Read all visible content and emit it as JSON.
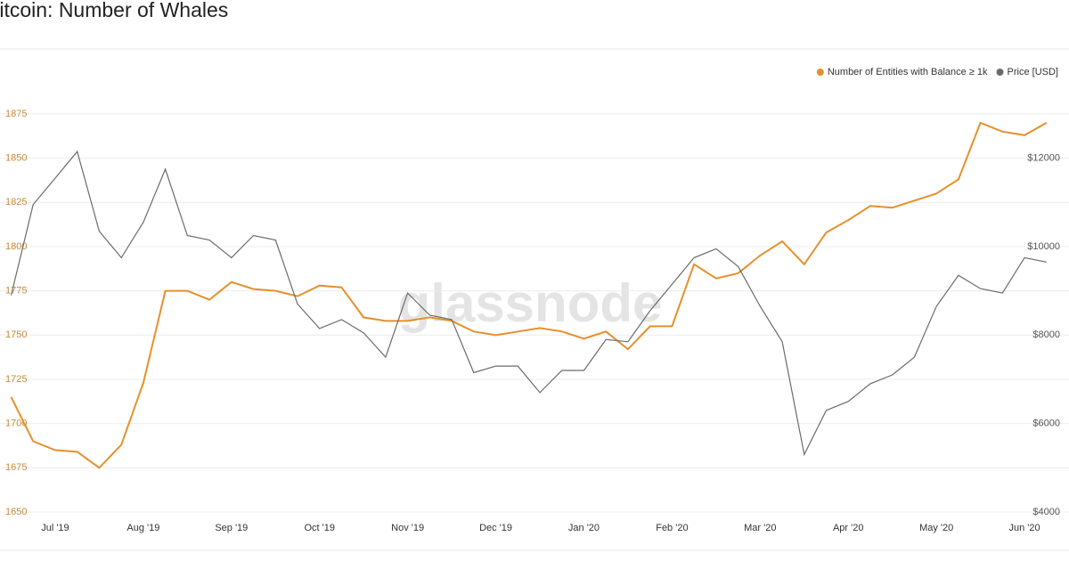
{
  "chart_data": {
    "type": "line",
    "title": "Bitcoin: Number of Whales",
    "watermark": "glassnode",
    "categories": [
      null,
      null,
      "Jul '19",
      null,
      null,
      null,
      "Aug '19",
      null,
      null,
      null,
      "Sep '19",
      null,
      null,
      null,
      "Oct '19",
      null,
      null,
      null,
      "Nov '19",
      null,
      null,
      null,
      "Dec '19",
      null,
      null,
      null,
      "Jan '20",
      null,
      null,
      null,
      "Feb '20",
      null,
      null,
      null,
      "Mar '20",
      null,
      null,
      null,
      "Apr '20",
      null,
      null,
      null,
      "May '20",
      null,
      null,
      null,
      "Jun '20",
      null
    ],
    "series": [
      {
        "name": "Number of Entities with Balance ≥ 1k",
        "color": "#e5902b",
        "values": [
          1715,
          1690,
          1685,
          1684,
          1675,
          1688,
          1723,
          1775,
          1775,
          1770,
          1780,
          1776,
          1775,
          1772,
          1778,
          1777,
          1760,
          1758,
          1758,
          1760,
          1758,
          1752,
          1750,
          1752,
          1754,
          1752,
          1748,
          1752,
          1742,
          1755,
          1755,
          1790,
          1782,
          1785,
          1795,
          1803,
          1790,
          1808,
          1815,
          1823,
          1822,
          1826,
          1830,
          1838,
          1870,
          1865,
          1863,
          1870
        ]
      },
      {
        "name": "Price [USD]",
        "color": "#6b6b6b",
        "axis": "y2",
        "values": [
          8900,
          10950,
          11550,
          12150,
          10350,
          9750,
          10550,
          11750,
          10250,
          10150,
          9750,
          10250,
          10150,
          8700,
          8150,
          8350,
          8050,
          7500,
          8950,
          8450,
          8350,
          7150,
          7300,
          7300,
          6700,
          7200,
          7200,
          7900,
          7850,
          8550,
          9150,
          9750,
          9950,
          9550,
          8650,
          7850,
          5300,
          6300,
          6500,
          6900,
          7100,
          7500,
          8650,
          9350,
          9050,
          8950,
          9750,
          9650
        ]
      }
    ],
    "ylim": [
      1650,
      1880
    ],
    "yticks": [
      1650,
      1675,
      1700,
      1725,
      1750,
      1775,
      1800,
      1825,
      1850,
      1875
    ],
    "y2lim": [
      4000,
      13200
    ],
    "y2ticks": [
      {
        "value": 4000,
        "label": "$4000"
      },
      {
        "value": 6000,
        "label": "$6000"
      },
      {
        "value": 8000,
        "label": "$8000"
      },
      {
        "value": 10000,
        "label": "$10000"
      },
      {
        "value": 12000,
        "label": "$12000"
      }
    ],
    "grid": true,
    "legend": "top-right"
  }
}
